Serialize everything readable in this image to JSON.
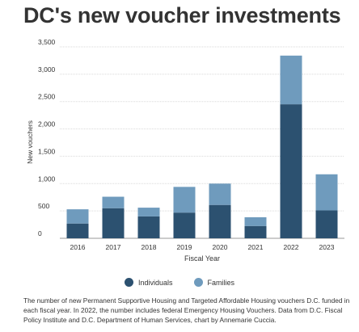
{
  "title": "DC's new voucher investments",
  "caption": "The number of new Permanent Supportive Housing and Targeted Affordable Housing vouchers D.C. funded in each fiscal year. In 2022, the number includes federal Emergency Housing Vouchers. Data from D.C. Fiscal Policy Institute and D.C. Department of Human Services, chart by Annemarie Cuccia.",
  "colors": {
    "individuals": "#2c5170",
    "families": "#6f9bbd",
    "grid": "#d9d9d9",
    "axis_text": "#333333"
  },
  "chart_data": {
    "type": "bar",
    "stacked": true,
    "categories": [
      "2016",
      "2017",
      "2018",
      "2019",
      "2020",
      "2021",
      "2022",
      "2023"
    ],
    "series": [
      {
        "name": "Individuals",
        "values": [
          270,
          550,
          400,
          470,
          610,
          225,
          2450,
          510
        ]
      },
      {
        "name": "Families",
        "values": [
          260,
          210,
          160,
          470,
          390,
          160,
          890,
          660
        ]
      }
    ],
    "xlabel": "Fiscal Year",
    "ylabel": "New vouchers",
    "ylim": [
      0,
      3500
    ],
    "yticks": [
      0,
      500,
      1000,
      1500,
      2000,
      2500,
      3000,
      3500
    ],
    "ytick_labels": [
      "0",
      "500",
      "1,000",
      "1,500",
      "2,000",
      "2,500",
      "3,000",
      "3,500"
    ],
    "grid": true,
    "legend_position": "bottom"
  }
}
